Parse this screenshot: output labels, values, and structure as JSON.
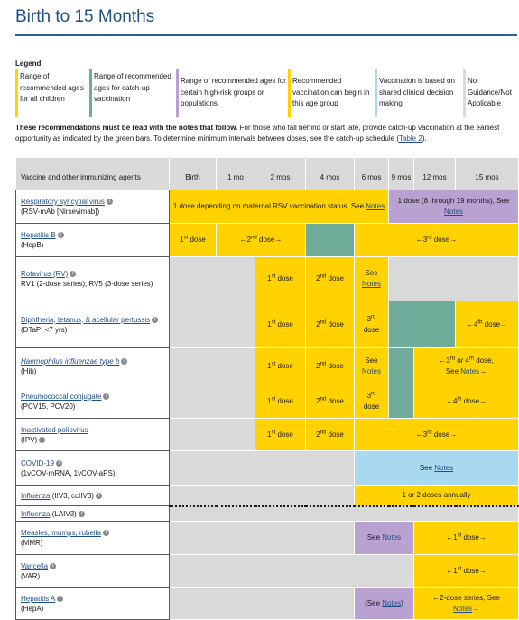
{
  "page": {
    "title": "Birth to 15 Months"
  },
  "legend": {
    "title": "Legend",
    "items": [
      {
        "text": "Range of recommended ages for all children",
        "color": "#ffd200"
      },
      {
        "text": "Range of recommended ages for catch-up vaccination",
        "color": "#6fac9a"
      },
      {
        "text": "Range of recommended ages for certain high-risk groups or populations",
        "color": "#b9a2d2"
      },
      {
        "text": "Recommended vaccination can begin in this age group",
        "color": "#ffd200"
      },
      {
        "text": "Vaccination is based on shared clinical decision making",
        "color": "#a9d9f1"
      },
      {
        "text": "No Guidance/Not Applicable",
        "color": "#d9d9d9"
      }
    ]
  },
  "intro": {
    "bold": "These recommendations must be read with the notes that follow.",
    "text": " For those who fall behind or start late, provide catch-up vaccination at the earliest opportunity as indicated by the green bars. To determine minimum intervals between doses, see the catch-up schedule (",
    "link": "Table 2",
    "end": ")."
  },
  "table": {
    "headers": [
      "Vaccine and other immunizing agents",
      "Birth",
      "1 mo",
      "2 mos",
      "4 mos",
      "6 mos",
      "9 mos",
      "12 mos",
      "15 mos"
    ],
    "common": {
      "notes": "Notes",
      "see": "See",
      "dose": "dose",
      "st": "st",
      "nd": "nd",
      "rd": "rd",
      "th": "th"
    },
    "rows": {
      "rsv": {
        "name": "Respiratory syncytial virus",
        "sub": "(RSV-mAb [Nirsevimab])",
        "c1a": "1 dose depending on maternal RSV vaccination status, See ",
        "c2a": "1 dose (8 through 19 months), See "
      },
      "hepb": {
        "name": "Hepatitis B",
        "sub": "(HepB)"
      },
      "rv": {
        "name": "Rotavirus (RV)",
        "sub": "RV1 (2-dose series); RV5 (3-dose series)"
      },
      "dtap": {
        "name": "Diphtheria, tetanus, & acellular pertussis",
        "sub": "(DTaP: <7 yrs)"
      },
      "hib": {
        "name": "Haemophilus influenzae type b",
        "sub": "(Hib)",
        "c1": "3",
        "c2": " or 4",
        "c3": " dose,",
        "c4": "See "
      },
      "pcv": {
        "name": "Pneumococcal conjugate",
        "sub": "(PCV15, PCV20)"
      },
      "ipv": {
        "name": "Inactivated poliovirus",
        "sub": "(IPV)"
      },
      "covid": {
        "name": "COVID-19",
        "sub": "(1vCOV-mRNA, 1vCOV-aPS)"
      },
      "flu1": {
        "name": "Influenza",
        "sub": "(IIV3, ccIIV3)",
        "text": "1 or 2 doses annually"
      },
      "flu2": {
        "name": "Influenza",
        "sub": "(LAIV3)"
      },
      "mmr": {
        "name": "Measles, mumps, rubella",
        "sub": "(MMR)"
      },
      "var": {
        "name": "Varicella",
        "sub": "(VAR)"
      },
      "hepa": {
        "name": "Hepatitis A",
        "sub": "(HepA)",
        "c1": "(See ",
        "c2": ")",
        "c3": "2-dose series, See "
      }
    }
  }
}
